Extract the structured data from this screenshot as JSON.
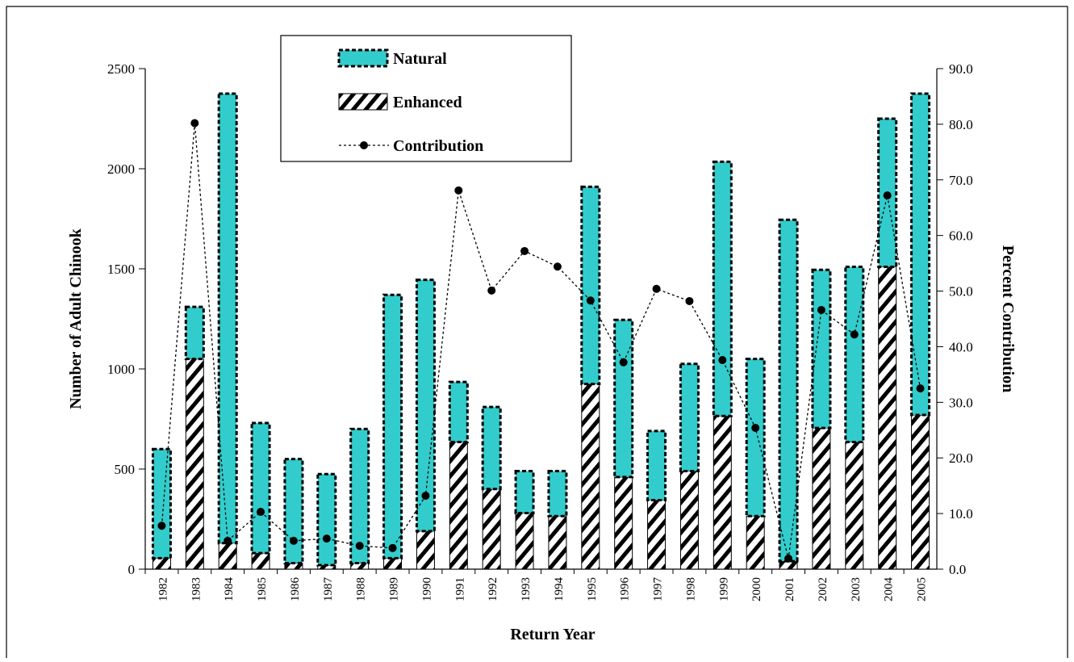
{
  "chart_data": {
    "type": "bar",
    "stacked": true,
    "x_label": "Return Year",
    "y_label": "Number of Adult Chinook",
    "y2_label": "Percent Contribution",
    "categories": [
      "1982",
      "1983",
      "1984",
      "1985",
      "1986",
      "1987",
      "1988",
      "1989",
      "1990",
      "1991",
      "1992",
      "1993",
      "1994",
      "1995",
      "1996",
      "1997",
      "1998",
      "1999",
      "2000",
      "2001",
      "2002",
      "2003",
      "2004",
      "2005"
    ],
    "series": [
      {
        "name": "Natural",
        "type": "bar",
        "color": "#33cccc",
        "values": [
          545,
          260,
          2245,
          650,
          520,
          455,
          670,
          1315,
          1255,
          300,
          410,
          210,
          225,
          985,
          785,
          345,
          535,
          1270,
          785,
          1705,
          790,
          875,
          740,
          1605
        ]
      },
      {
        "name": "Enhanced",
        "type": "bar",
        "color": "#000000",
        "pattern": "hatch",
        "values": [
          55,
          1050,
          130,
          80,
          30,
          20,
          30,
          55,
          190,
          635,
          400,
          280,
          265,
          925,
          460,
          345,
          490,
          765,
          265,
          40,
          705,
          635,
          1510,
          770
        ]
      },
      {
        "name": "Contribution",
        "type": "line",
        "axis": "y2",
        "color": "#000000",
        "values": [
          7.8,
          80.2,
          5.1,
          10.3,
          5.1,
          5.5,
          4.2,
          3.8,
          13.2,
          68.1,
          50.1,
          57.2,
          54.4,
          48.3,
          37.2,
          50.4,
          48.2,
          37.6,
          25.4,
          1.9,
          46.6,
          42.2,
          67.2,
          32.5
        ]
      }
    ],
    "ylim": [
      0,
      2500
    ],
    "yticks": [
      0,
      500,
      1000,
      1500,
      2000,
      2500
    ],
    "y2lim": [
      0,
      90
    ],
    "y2ticks": [
      {
        "value": 0,
        "label": "0.0"
      },
      {
        "value": 10,
        "label": "10.0"
      },
      {
        "value": 20,
        "label": "20.0"
      },
      {
        "value": 30,
        "label": "30.0"
      },
      {
        "value": 40,
        "label": "40.0"
      },
      {
        "value": 50,
        "label": "50.0"
      },
      {
        "value": 60,
        "label": "60.0"
      },
      {
        "value": 70,
        "label": "70.0"
      },
      {
        "value": 80,
        "label": "80.0"
      },
      {
        "value": 90,
        "label": "90.0"
      }
    ],
    "grid": false,
    "legend": "top-left"
  }
}
